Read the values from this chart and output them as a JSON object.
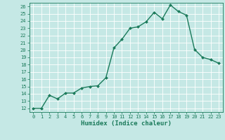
{
  "x": [
    0,
    1,
    2,
    3,
    4,
    5,
    6,
    7,
    8,
    9,
    10,
    11,
    12,
    13,
    14,
    15,
    16,
    17,
    18,
    19,
    20,
    21,
    22,
    23
  ],
  "y": [
    12,
    12,
    13.8,
    13.3,
    14.1,
    14.1,
    14.8,
    15.0,
    15.1,
    16.2,
    20.3,
    21.5,
    23.0,
    23.2,
    23.9,
    25.2,
    24.3,
    26.2,
    25.3,
    24.8,
    20.1,
    19.0,
    18.7,
    18.2
  ],
  "xlabel": "Humidex (Indice chaleur)",
  "xlim": [
    -0.5,
    23.5
  ],
  "ylim": [
    11.5,
    26.5
  ],
  "yticks": [
    12,
    13,
    14,
    15,
    16,
    17,
    18,
    19,
    20,
    21,
    22,
    23,
    24,
    25,
    26
  ],
  "xticks": [
    0,
    1,
    2,
    3,
    4,
    5,
    6,
    7,
    8,
    9,
    10,
    11,
    12,
    13,
    14,
    15,
    16,
    17,
    18,
    19,
    20,
    21,
    22,
    23
  ],
  "line_color": "#1a7a5a",
  "marker_color": "#1a7a5a",
  "bg_color": "#c5e8e5",
  "grid_color": "#ffffff",
  "axis_color": "#1a7a5a",
  "tick_label_color": "#1a7a5a",
  "xlabel_color": "#1a7a5a",
  "marker": "D",
  "marker_size": 2.0,
  "line_width": 1.0,
  "tick_fontsize": 5.0,
  "xlabel_fontsize": 6.5
}
